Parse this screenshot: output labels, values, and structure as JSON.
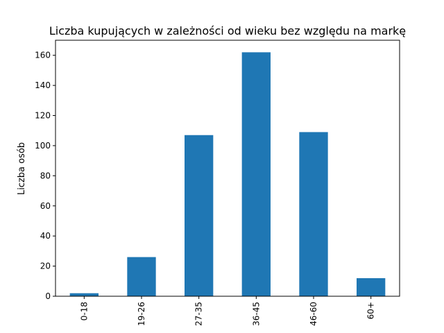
{
  "chart_data": {
    "type": "bar",
    "title": "Liczba kupujących w zależności od wieku bez względu na markę",
    "xlabel": "",
    "ylabel": "Liczba osób",
    "categories": [
      "0-18",
      "19-26",
      "27-35",
      "36-45",
      "46-60",
      "60+"
    ],
    "values": [
      2,
      26,
      107,
      162,
      109,
      12
    ],
    "ylim": [
      0,
      170
    ],
    "yticks": [
      0,
      20,
      40,
      60,
      80,
      100,
      120,
      140,
      160
    ],
    "grid": false,
    "bar_color": "#1f77b4"
  }
}
